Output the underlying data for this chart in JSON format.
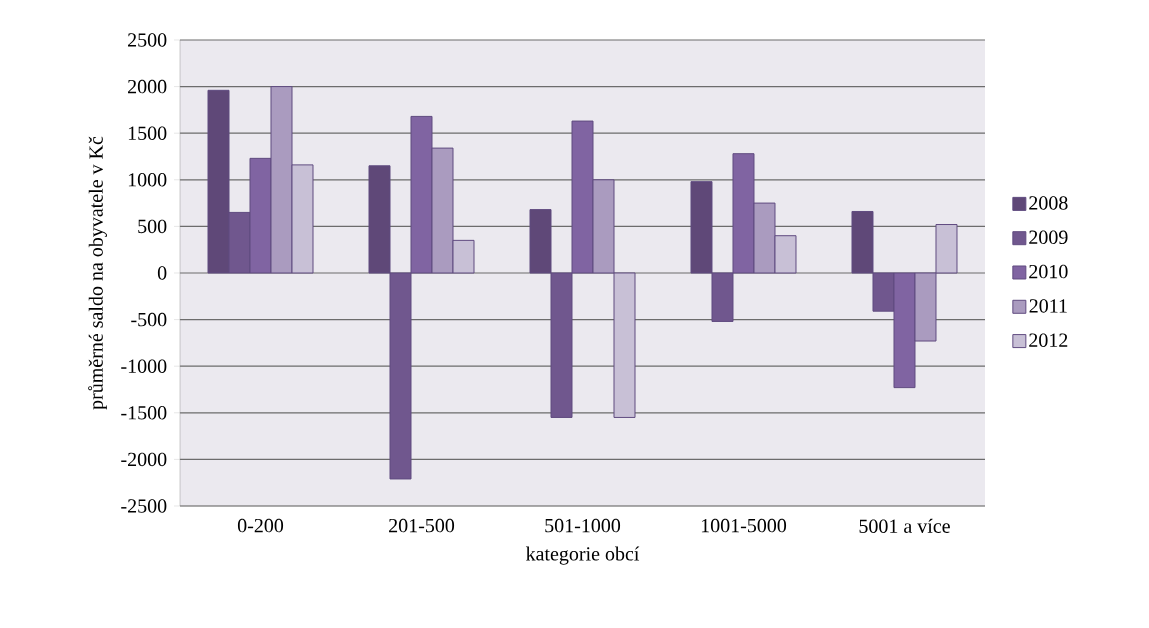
{
  "chart_data": {
    "type": "bar",
    "xlabel": "kategorie obcí",
    "ylabel": "průměrné saldo na obyvatele v Kč",
    "categories": [
      "0-200",
      "201-500",
      "501-1000",
      "1001-5000",
      "5001 a více"
    ],
    "series": [
      {
        "name": "2008",
        "color": "#5f4878",
        "values": [
          1960,
          1150,
          680,
          980,
          660
        ]
      },
      {
        "name": "2009",
        "color": "#70578e",
        "values": [
          650,
          -2210,
          -1550,
          -520,
          -410
        ]
      },
      {
        "name": "2010",
        "color": "#8064a2",
        "values": [
          1230,
          1680,
          1630,
          1280,
          -1230
        ]
      },
      {
        "name": "2011",
        "color": "#aa9bbf",
        "values": [
          2000,
          1340,
          1000,
          750,
          -730
        ]
      },
      {
        "name": "2012",
        "color": "#c8c0d6",
        "values": [
          1160,
          350,
          -1550,
          400,
          520
        ]
      }
    ],
    "ylim": [
      -2500,
      2500
    ],
    "yticks": [
      -2500,
      -2000,
      -1500,
      -1000,
      -500,
      0,
      500,
      1000,
      1500,
      2000,
      2500
    ],
    "grid": "y",
    "legend": "right"
  }
}
